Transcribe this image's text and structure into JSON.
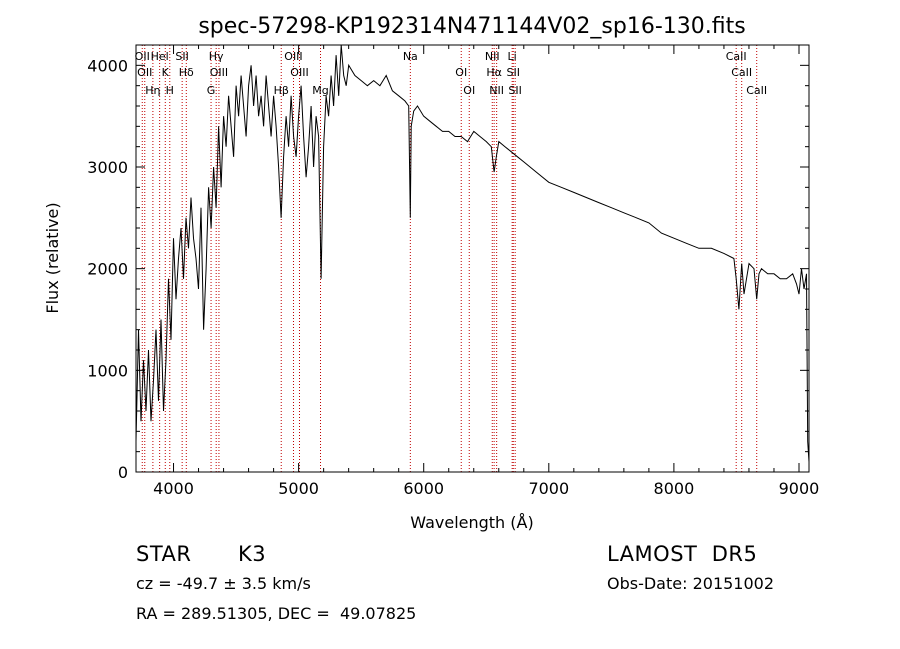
{
  "chart_data": {
    "type": "line",
    "title": "spec-57298-KP192314N471144V02_sp16-130.fits",
    "xlabel": "Wavelength (Å)",
    "ylabel": "Flux (relative)",
    "xlim": [
      3700,
      9080
    ],
    "ylim": [
      0,
      4200
    ],
    "xticks": [
      4000,
      5000,
      6000,
      7000,
      8000,
      9000
    ],
    "yticks": [
      0,
      1000,
      2000,
      3000,
      4000
    ],
    "grid": false,
    "series": [
      {
        "values_x": [
          3700,
          3720,
          3740,
          3760,
          3780,
          3800,
          3820,
          3840,
          3860,
          3880,
          3900,
          3920,
          3940,
          3960,
          3980,
          4000,
          4020,
          4040,
          4060,
          4080,
          4100,
          4120,
          4140,
          4160,
          4180,
          4200,
          4220,
          4240,
          4260,
          4280,
          4300,
          4320,
          4340,
          4360,
          4380,
          4400,
          4420,
          4440,
          4460,
          4480,
          4500,
          4520,
          4540,
          4560,
          4580,
          4600,
          4620,
          4640,
          4660,
          4680,
          4700,
          4720,
          4740,
          4760,
          4780,
          4800,
          4820,
          4840,
          4860,
          4880,
          4900,
          4920,
          4940,
          4960,
          4980,
          5000,
          5020,
          5040,
          5060,
          5080,
          5100,
          5120,
          5140,
          5160,
          5180,
          5200,
          5220,
          5240,
          5260,
          5280,
          5300,
          5320,
          5340,
          5360,
          5380,
          5400,
          5450,
          5500,
          5550,
          5600,
          5650,
          5700,
          5750,
          5800,
          5850,
          5880,
          5893,
          5900,
          5920,
          5950,
          6000,
          6050,
          6100,
          6150,
          6200,
          6250,
          6300,
          6350,
          6400,
          6450,
          6500,
          6540,
          6563,
          6580,
          6600,
          6650,
          6700,
          6750,
          6800,
          6900,
          7000,
          7100,
          7200,
          7300,
          7400,
          7500,
          7600,
          7700,
          7800,
          7900,
          8000,
          8100,
          8200,
          8300,
          8400,
          8480,
          8498,
          8520,
          8542,
          8560,
          8600,
          8640,
          8662,
          8680,
          8700,
          8750,
          8800,
          8850,
          8900,
          8950,
          8980,
          9000,
          9020,
          9040,
          9060,
          9070,
          9080
        ],
        "values_y": [
          300,
          1400,
          500,
          1100,
          600,
          1200,
          500,
          900,
          1400,
          700,
          1500,
          600,
          1100,
          1900,
          1300,
          2300,
          1700,
          2100,
          2400,
          1900,
          2500,
          2200,
          2700,
          2300,
          2100,
          1800,
          2600,
          1400,
          2000,
          2800,
          2400,
          3000,
          2600,
          3400,
          2800,
          3500,
          3200,
          3700,
          3400,
          3100,
          3800,
          3500,
          3900,
          3600,
          3300,
          3800,
          4000,
          3600,
          3900,
          3500,
          3700,
          3400,
          3900,
          3600,
          3300,
          3700,
          3400,
          3000,
          2500,
          3100,
          3500,
          3200,
          3700,
          3300,
          3100,
          3500,
          3800,
          3300,
          2900,
          3200,
          3600,
          3000,
          3500,
          3300,
          1900,
          3200,
          3700,
          3500,
          3900,
          3600,
          4100,
          3700,
          4200,
          3900,
          3800,
          4000,
          3900,
          3850,
          3800,
          3850,
          3800,
          3900,
          3750,
          3700,
          3650,
          3600,
          2500,
          3400,
          3550,
          3600,
          3500,
          3450,
          3400,
          3350,
          3350,
          3300,
          3300,
          3250,
          3350,
          3300,
          3250,
          3200,
          2950,
          3100,
          3250,
          3200,
          3150,
          3100,
          3050,
          2950,
          2850,
          2800,
          2750,
          2700,
          2650,
          2600,
          2550,
          2500,
          2450,
          2350,
          2300,
          2250,
          2200,
          2200,
          2150,
          2100,
          1900,
          1600,
          2050,
          1750,
          2050,
          2000,
          1700,
          1950,
          2000,
          1950,
          1950,
          1900,
          1900,
          1950,
          1850,
          1750,
          2000,
          1800,
          1950,
          300,
          100
        ]
      }
    ],
    "lines": [
      {
        "x": 3750,
        "label": "OII"
      },
      {
        "x": 3770,
        "label": "OII"
      },
      {
        "x": 3835,
        "label": "Hη"
      },
      {
        "x": 3889,
        "label": "Hel"
      },
      {
        "x": 3934,
        "label": "K"
      },
      {
        "x": 3970,
        "label": "H"
      },
      {
        "x": 4069,
        "label": "SII"
      },
      {
        "x": 4102,
        "label": "Hδ"
      },
      {
        "x": 4300,
        "label": "G"
      },
      {
        "x": 4341,
        "label": "Hγ"
      },
      {
        "x": 4363,
        "label": "OIII"
      },
      {
        "x": 4861,
        "label": "Hβ"
      },
      {
        "x": 4959,
        "label": "OIII"
      },
      {
        "x": 5007,
        "label": "OIII"
      },
      {
        "x": 5175,
        "label": "Mg"
      },
      {
        "x": 5893,
        "label": "Na"
      },
      {
        "x": 6300,
        "label": "OI"
      },
      {
        "x": 6364,
        "label": "OI"
      },
      {
        "x": 6548,
        "label": "NII"
      },
      {
        "x": 6563,
        "label": "Hα"
      },
      {
        "x": 6583,
        "label": "NII"
      },
      {
        "x": 6707,
        "label": "Li"
      },
      {
        "x": 6716,
        "label": "SII"
      },
      {
        "x": 6731,
        "label": "SII"
      },
      {
        "x": 8498,
        "label": "CaII"
      },
      {
        "x": 8542,
        "label": "CaII"
      },
      {
        "x": 8662,
        "label": "CaII"
      }
    ]
  },
  "info": {
    "object_type": "STAR",
    "subclass": "K3",
    "survey": "LAMOST  DR5",
    "cz": "cz = -49.7 ± 3.5 km/s",
    "obs_date": "Obs-Date: 20151002",
    "coords": "RA = 289.51305, DEC =  49.07825"
  }
}
